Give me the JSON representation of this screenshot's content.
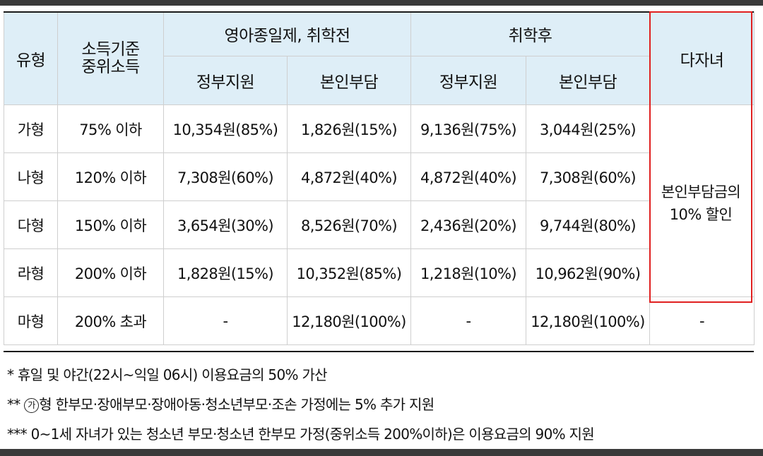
{
  "headers": {
    "type": "유형",
    "income_line1": "소득기준",
    "income_line2": "중위소득",
    "group_infant": "영아종일제, 취학전",
    "group_school": "취학후",
    "multi": "다자녀",
    "gov": "정부지원",
    "self": "본인부담"
  },
  "rows": [
    {
      "type": "가형",
      "income": "75% 이하",
      "infant_gov": "10,354원(85%)",
      "infant_self": "1,826원(15%)",
      "school_gov": "9,136원(75%)",
      "school_self": "3,044원(25%)"
    },
    {
      "type": "나형",
      "income": "120% 이하",
      "infant_gov": "7,308원(60%)",
      "infant_self": "4,872원(40%)",
      "school_gov": "4,872원(40%)",
      "school_self": "7,308원(60%)"
    },
    {
      "type": "다형",
      "income": "150% 이하",
      "infant_gov": "3,654원(30%)",
      "infant_self": "8,526원(70%)",
      "school_gov": "2,436원(20%)",
      "school_self": "9,744원(80%)"
    },
    {
      "type": "라형",
      "income": "200% 이하",
      "infant_gov": "1,828원(15%)",
      "infant_self": "10,352원(85%)",
      "school_gov": "1,218원(10%)",
      "school_self": "10,962원(90%)"
    },
    {
      "type": "마형",
      "income": "200% 초과",
      "infant_gov": "-",
      "infant_self": "12,180원(100%)",
      "school_gov": "-",
      "school_self": "12,180원(100%)",
      "multi": "-"
    }
  ],
  "multi_discount": {
    "line1": "본인부담금의",
    "line2": "10% 할인"
  },
  "notes": {
    "n1_mark": "*",
    "n1": "휴일 및 야간(22시~익일 06시) 이용요금의 50% 가산",
    "n2_mark": "**",
    "n2_circled": "가",
    "n2": "형 한부모·장애부모·장애아동·청소년부모·조손 가정에는 5% 추가 지원",
    "n3_mark": "***",
    "n3": "0~1세 자녀가 있는 청소년 부모·청소년 한부모 가정(중위소득 200%이하)은 이용요금의 90% 지원"
  }
}
